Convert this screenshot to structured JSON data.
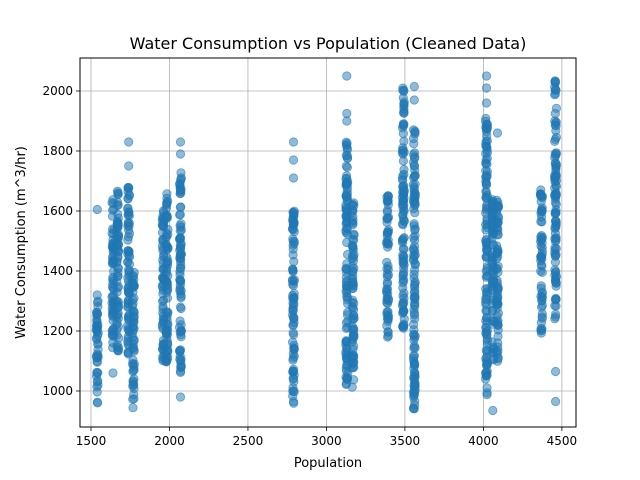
{
  "chart_data": {
    "type": "scatter",
    "title": "Water Consumption vs Population (Cleaned Data)",
    "xlabel": "Population",
    "ylabel": "Water Consumption (m^3/hr)",
    "xlim": [
      1430,
      4590
    ],
    "ylim": [
      880,
      2110
    ],
    "xticks": [
      1500,
      2000,
      2500,
      3000,
      3500,
      4000,
      4500
    ],
    "yticks": [
      1000,
      1200,
      1400,
      1600,
      1800,
      2000
    ],
    "grid": true,
    "marker_color": "#1f77b4",
    "marker_alpha": 0.5,
    "series": [
      {
        "clusters": [
          {
            "x": 1540,
            "y_min": 955,
            "y_max": 1330,
            "extra_y": [
              1605
            ]
          },
          {
            "x": 1640,
            "y_min": 1140,
            "y_max": 1640,
            "extra_y": [
              1060
            ]
          },
          {
            "x": 1670,
            "y_min": 1120,
            "y_max": 1670,
            "extra_y": []
          },
          {
            "x": 1740,
            "y_min": 1120,
            "y_max": 1700,
            "extra_y": [
              1750,
              1830
            ]
          },
          {
            "x": 1770,
            "y_min": 940,
            "y_max": 1400,
            "extra_y": []
          },
          {
            "x": 1960,
            "y_min": 1100,
            "y_max": 1610,
            "extra_y": []
          },
          {
            "x": 1985,
            "y_min": 1090,
            "y_max": 1670,
            "extra_y": []
          },
          {
            "x": 2070,
            "y_min": 1060,
            "y_max": 1730,
            "extra_y": [
              980,
              1790,
              1830
            ]
          },
          {
            "x": 2790,
            "y_min": 945,
            "y_max": 1620,
            "extra_y": [
              1710,
              1770,
              1830
            ]
          },
          {
            "x": 3130,
            "y_min": 1010,
            "y_max": 1830,
            "extra_y": [
              1900,
              1925,
              2050
            ]
          },
          {
            "x": 3170,
            "y_min": 1010,
            "y_max": 1630,
            "extra_y": []
          },
          {
            "x": 3390,
            "y_min": 1165,
            "y_max": 1665,
            "extra_y": []
          },
          {
            "x": 3490,
            "y_min": 1200,
            "y_max": 2020,
            "extra_y": []
          },
          {
            "x": 3560,
            "y_min": 940,
            "y_max": 1880,
            "extra_y": [
              1970,
              2015
            ]
          },
          {
            "x": 4020,
            "y_min": 980,
            "y_max": 1920,
            "extra_y": [
              1960,
              2010,
              2050
            ]
          },
          {
            "x": 4060,
            "y_min": 1090,
            "y_max": 1640,
            "extra_y": [
              935
            ]
          },
          {
            "x": 4090,
            "y_min": 1090,
            "y_max": 1640,
            "extra_y": [
              1860
            ]
          },
          {
            "x": 4370,
            "y_min": 1190,
            "y_max": 1670,
            "extra_y": []
          },
          {
            "x": 4460,
            "y_min": 1230,
            "y_max": 2050,
            "extra_y": [
              965,
              1065
            ]
          }
        ]
      }
    ]
  }
}
